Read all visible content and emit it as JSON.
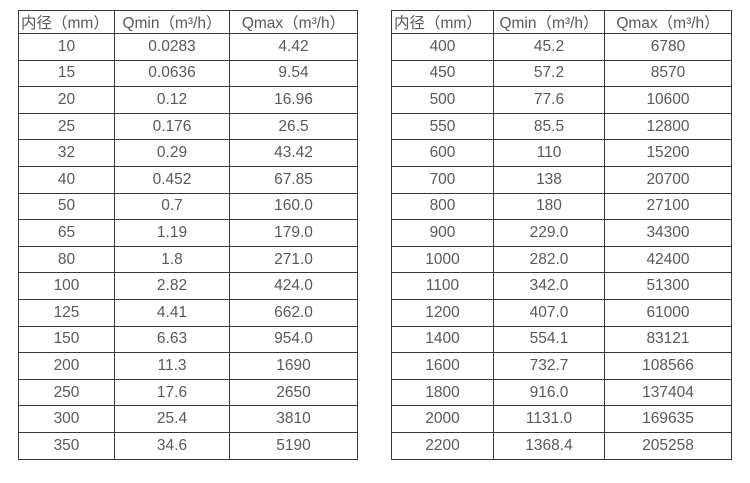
{
  "colors": {
    "border": "#383838",
    "text": "#595959",
    "background": "#ffffff"
  },
  "left_table": {
    "headers": [
      "内径（mm）",
      "Qmin（m³/h）",
      "Qmax（m³/h）"
    ],
    "rows": [
      [
        "10",
        "0.0283",
        "4.42"
      ],
      [
        "15",
        "0.0636",
        "9.54"
      ],
      [
        "20",
        "0.12",
        "16.96"
      ],
      [
        "25",
        "0.176",
        "26.5"
      ],
      [
        "32",
        "0.29",
        "43.42"
      ],
      [
        "40",
        "0.452",
        "67.85"
      ],
      [
        "50",
        "0.7",
        "160.0"
      ],
      [
        "65",
        "1.19",
        "179.0"
      ],
      [
        "80",
        "1.8",
        "271.0"
      ],
      [
        "100",
        "2.82",
        "424.0"
      ],
      [
        "125",
        "4.41",
        "662.0"
      ],
      [
        "150",
        "6.63",
        "954.0"
      ],
      [
        "200",
        "11.3",
        "1690"
      ],
      [
        "250",
        "17.6",
        "2650"
      ],
      [
        "300",
        "25.4",
        "3810"
      ],
      [
        "350",
        "34.6",
        "5190"
      ]
    ]
  },
  "right_table": {
    "headers": [
      "内径（mm）",
      "Qmin（m³/h）",
      "Qmax（m³/h）"
    ],
    "rows": [
      [
        "400",
        "45.2",
        "6780"
      ],
      [
        "450",
        "57.2",
        "8570"
      ],
      [
        "500",
        "77.6",
        "10600"
      ],
      [
        "550",
        "85.5",
        "12800"
      ],
      [
        "600",
        "110",
        "15200"
      ],
      [
        "700",
        "138",
        "20700"
      ],
      [
        "800",
        "180",
        "27100"
      ],
      [
        "900",
        "229.0",
        "34300"
      ],
      [
        "1000",
        "282.0",
        "42400"
      ],
      [
        "1100",
        "342.0",
        "51300"
      ],
      [
        "1200",
        "407.0",
        "61000"
      ],
      [
        "1400",
        "554.1",
        "83121"
      ],
      [
        "1600",
        "732.7",
        "108566"
      ],
      [
        "1800",
        "916.0",
        "137404"
      ],
      [
        "2000",
        "1131.0",
        "169635"
      ],
      [
        "2200",
        "1368.4",
        "205258"
      ]
    ]
  }
}
